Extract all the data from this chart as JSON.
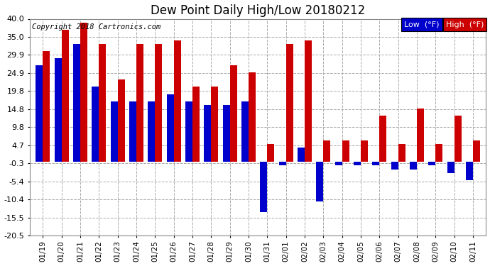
{
  "title": "Dew Point Daily High/Low 20180212",
  "copyright": "Copyright 2018 Cartronics.com",
  "dates": [
    "01/19",
    "01/20",
    "01/21",
    "01/22",
    "01/23",
    "01/24",
    "01/25",
    "01/26",
    "01/27",
    "01/28",
    "01/29",
    "01/30",
    "01/31",
    "02/01",
    "02/02",
    "02/03",
    "02/04",
    "02/05",
    "02/06",
    "02/07",
    "02/08",
    "02/09",
    "02/10",
    "02/11"
  ],
  "low": [
    27,
    29,
    33,
    21,
    17,
    17,
    17,
    19,
    17,
    16,
    16,
    17,
    -14,
    -1,
    4,
    -11,
    -1,
    -1,
    -1,
    -2,
    -2,
    -1,
    -3,
    -5
  ],
  "high": [
    31,
    37,
    39,
    33,
    23,
    33,
    33,
    34,
    21,
    21,
    27,
    25,
    5,
    33,
    34,
    6,
    6,
    6,
    13,
    5,
    15,
    5,
    13,
    6
  ],
  "ylim": [
    -20.5,
    40.0
  ],
  "yticks": [
    -20.5,
    -15.5,
    -10.4,
    -5.4,
    -0.3,
    4.7,
    9.8,
    14.8,
    19.8,
    24.9,
    29.9,
    35.0,
    40.0
  ],
  "ytick_labels": [
    "-20.5",
    "-15.5",
    "-10.4",
    "-5.4",
    "-0.3",
    "4.7",
    "9.8",
    "14.8",
    "19.8",
    "24.9",
    "29.9",
    "35.0",
    "40.0"
  ],
  "bar_width": 0.38,
  "low_color": "#0000cc",
  "high_color": "#cc0000",
  "bg_color": "#ffffff",
  "grid_color": "#aaaaaa",
  "title_fontsize": 12,
  "copyright_fontsize": 7.5,
  "legend_low_label": "Low  (°F)",
  "legend_high_label": "High  (°F)"
}
